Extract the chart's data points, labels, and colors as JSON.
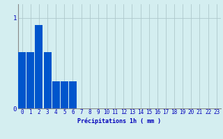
{
  "categories": [
    0,
    1,
    2,
    3,
    4,
    5,
    6,
    7,
    8,
    9,
    10,
    11,
    12,
    13,
    14,
    15,
    16,
    17,
    18,
    19,
    20,
    21,
    22,
    23
  ],
  "values": [
    0.62,
    0.62,
    0.92,
    0.62,
    0.3,
    0.3,
    0.3,
    0.0,
    0.0,
    0.0,
    0.0,
    0.0,
    0.0,
    0.0,
    0.0,
    0.0,
    0.0,
    0.0,
    0.0,
    0.0,
    0.0,
    0.0,
    0.0,
    0.0
  ],
  "bar_color": "#0055cc",
  "background_color": "#d4eef0",
  "grid_color": "#aec8cc",
  "xlabel": "Précipitations 1h ( mm )",
  "xlabel_color": "#0000bb",
  "xlabel_fontsize": 6.0,
  "tick_color": "#0000bb",
  "tick_fontsize": 5.5,
  "ytick_fontsize": 6.5,
  "yticks": [
    0,
    1
  ],
  "ylim": [
    0,
    1.15
  ],
  "xlim": [
    -0.5,
    23.5
  ]
}
